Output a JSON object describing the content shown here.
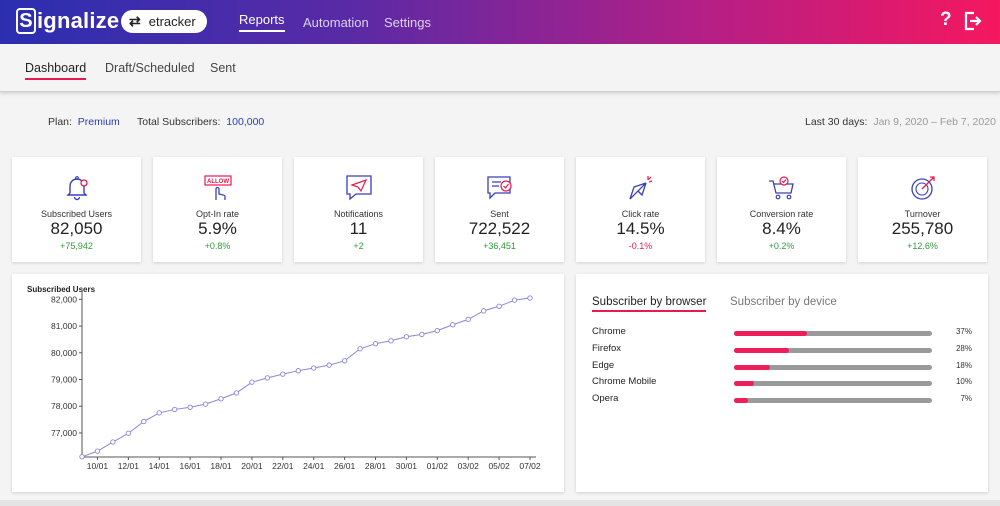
{
  "header": {
    "logo": "ignalize",
    "logo_initial": "S",
    "account": "etracker",
    "nav": [
      "Reports",
      "Automation",
      "Settings"
    ],
    "help": "?"
  },
  "subnav": [
    "Dashboard",
    "Draft/Scheduled",
    "Sent"
  ],
  "summary": {
    "plan_label": "Plan:",
    "plan_value": "Premium",
    "subs_label": "Total Subscribers:",
    "subs_value": "100,000",
    "range_label": "Last 30 days:",
    "range_value": "Jan 9, 2020 – Feb 7, 2020"
  },
  "cards": [
    {
      "label": "Subscribed Users",
      "value": "82,050",
      "delta": "+75,942",
      "icon": "bell-icon"
    },
    {
      "label": "Opt-In rate",
      "value": "5.9%",
      "delta": "+0.8%",
      "icon": "allow-icon",
      "icon_text": "ALLOW"
    },
    {
      "label": "Notifications",
      "value": "11",
      "delta": "+2",
      "icon": "paper-plane-message-icon"
    },
    {
      "label": "Sent",
      "value": "722,522",
      "delta": "+36,451",
      "icon": "message-check-icon"
    },
    {
      "label": "Click rate",
      "value": "14.5%",
      "delta": "-0.1%",
      "icon": "cursor-click-icon"
    },
    {
      "label": "Conversion rate",
      "value": "8.4%",
      "delta": "+0.2%",
      "icon": "cart-icon"
    },
    {
      "label": "Turnover",
      "value": "255,780",
      "delta": "+12.6%",
      "icon": "target-icon"
    }
  ],
  "chart_data": {
    "type": "line",
    "title": "Subscribed Users",
    "xlabel": "",
    "ylabel": "",
    "ylim": [
      76100,
      82200
    ],
    "yticks": [
      77000,
      78000,
      79000,
      80000,
      81000,
      82000
    ],
    "ytick_labels": [
      "77,000",
      "78,000",
      "79,000",
      "80,000",
      "81,000",
      "82,000"
    ],
    "xtick_labels": [
      "10/01",
      "12/01",
      "14/01",
      "16/01",
      "18/01",
      "20/01",
      "22/01",
      "24/01",
      "26/01",
      "28/01",
      "30/01",
      "01/02",
      "03/02",
      "05/02",
      "07/02"
    ],
    "x": [
      "09/01",
      "10/01",
      "11/01",
      "12/01",
      "13/01",
      "14/01",
      "15/01",
      "16/01",
      "17/01",
      "18/01",
      "19/01",
      "20/01",
      "21/01",
      "22/01",
      "23/01",
      "24/01",
      "25/01",
      "26/01",
      "27/01",
      "28/01",
      "29/01",
      "30/01",
      "31/01",
      "01/02",
      "02/02",
      "03/02",
      "04/02",
      "05/02",
      "06/02",
      "07/02"
    ],
    "values": [
      76108,
      76320,
      76660,
      76990,
      77430,
      77750,
      77880,
      77960,
      78080,
      78280,
      78500,
      78900,
      79060,
      79200,
      79330,
      79430,
      79540,
      79700,
      80150,
      80340,
      80450,
      80600,
      80690,
      80830,
      81050,
      81250,
      81570,
      81740,
      81970,
      82050
    ],
    "color": "#8a86d8"
  },
  "browser_panel": {
    "tabs": [
      "Subscriber by browser",
      "Subscriber by device"
    ],
    "rows": [
      {
        "name": "Chrome",
        "pct": "37%",
        "value": 0.37
      },
      {
        "name": "Firefox",
        "pct": "28%",
        "value": 0.28
      },
      {
        "name": "Edge",
        "pct": "18%",
        "value": 0.18
      },
      {
        "name": "Chrome Mobile",
        "pct": "10%",
        "value": 0.1
      },
      {
        "name": "Opera",
        "pct": "7%",
        "value": 0.07
      }
    ],
    "accent": "#ef1d5a"
  }
}
